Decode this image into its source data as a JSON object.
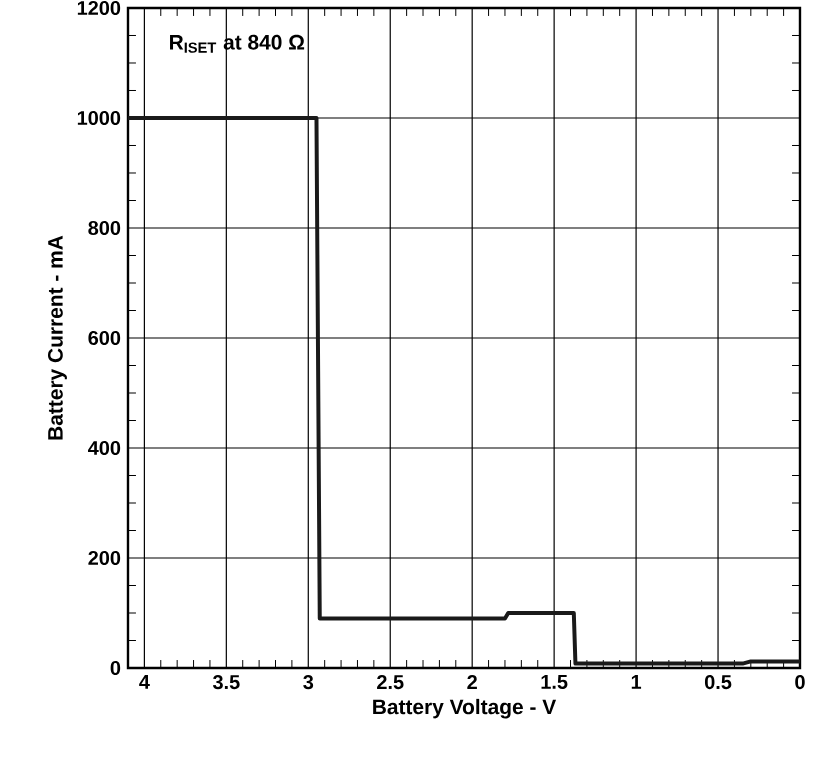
{
  "chart_data": {
    "type": "line",
    "xlabel": "Battery Voltage - V",
    "ylabel": "Battery Current - mA",
    "annotations": [
      "R$_{ISET}$ at 840 Ω"
    ],
    "series": [
      {
        "color": "#1a1a1a",
        "x": [
          4.1,
          2.95,
          2.93,
          1.8,
          1.78,
          1.38,
          1.37,
          0.35,
          0.3,
          0
        ],
        "values": [
          1000,
          1000,
          90,
          90,
          100,
          100,
          8,
          8,
          12,
          12
        ]
      }
    ],
    "xlim": [
      4.1,
      0
    ],
    "xticks": [
      4,
      3.5,
      3,
      2.5,
      2,
      1.5,
      1,
      0.5,
      0
    ],
    "ylim": [
      0,
      1200
    ],
    "yticks": [
      0,
      200,
      400,
      600,
      800,
      1000,
      1200
    ],
    "grid": true
  }
}
